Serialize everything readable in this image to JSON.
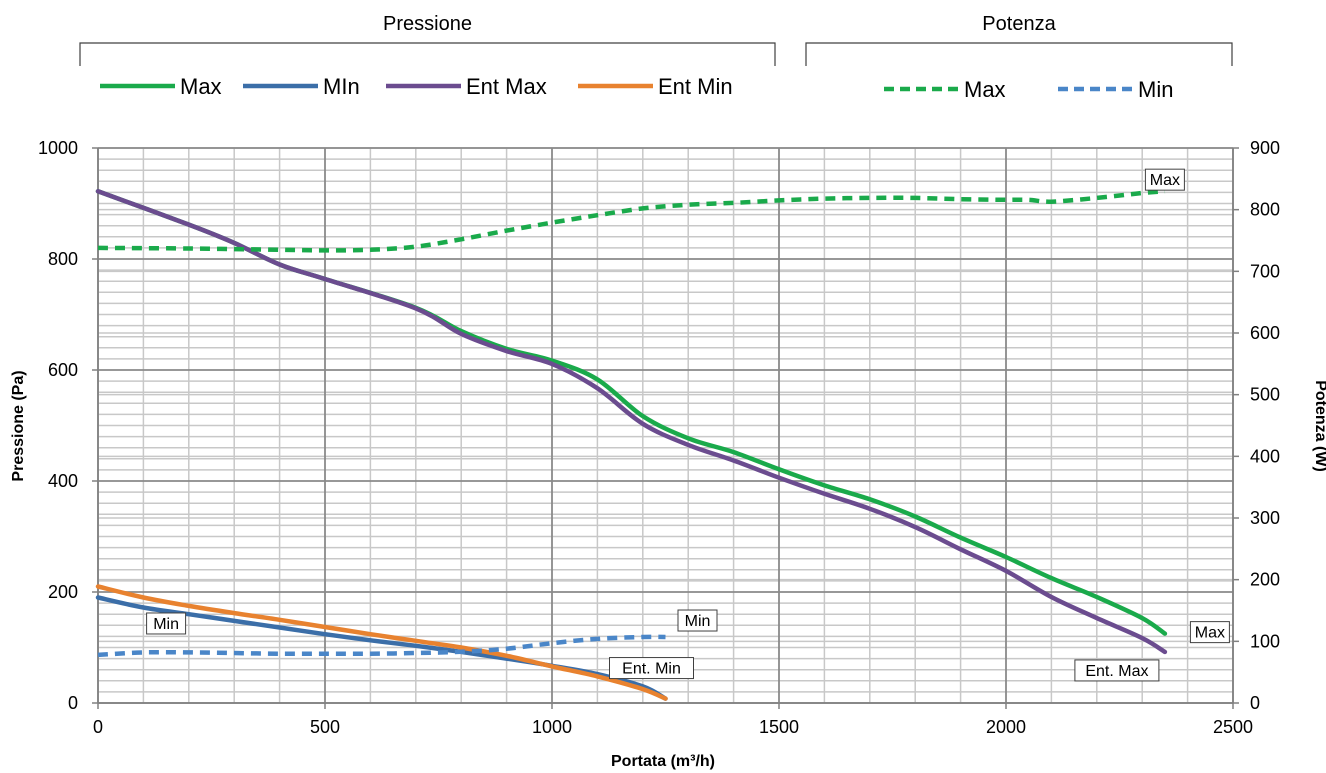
{
  "chart_data": {
    "type": "line",
    "legend": {
      "groups": [
        {
          "title": "Pressione",
          "entries": [
            {
              "label": "Max",
              "color": "#1aaa4b",
              "dashed": false
            },
            {
              "label": "MIn",
              "color": "#3b6ea8",
              "dashed": false
            },
            {
              "label": "Ent Max",
              "color": "#6b4c8f",
              "dashed": false
            },
            {
              "label": "Ent Min",
              "color": "#e8822f",
              "dashed": false
            }
          ]
        },
        {
          "title": "Potenza",
          "entries": [
            {
              "label": "Max",
              "color": "#1aaa4b",
              "dashed": true
            },
            {
              "label": "Min",
              "color": "#4a86c8",
              "dashed": true
            }
          ]
        }
      ],
      "placement": "top"
    },
    "xlabel": "Portata (m³/h)",
    "ylabel": "Pressione (Pa)",
    "y2label": "Potenza (W)",
    "xlim": [
      0,
      2500
    ],
    "ylim": [
      0,
      1000
    ],
    "y2lim": [
      0,
      900
    ],
    "x_ticks": [
      0,
      500,
      1000,
      1500,
      2000,
      2500
    ],
    "y_ticks": [
      0,
      200,
      400,
      600,
      800,
      1000
    ],
    "y2_ticks": [
      0,
      100,
      200,
      300,
      400,
      500,
      600,
      700,
      800,
      900
    ],
    "grid": true,
    "series": [
      {
        "name": "Max",
        "axis": "left",
        "color": "#1aaa4b",
        "dashed": false,
        "end_label": "Max",
        "x": [
          0,
          200,
          300,
          400,
          500,
          700,
          800,
          900,
          1000,
          1100,
          1200,
          1300,
          1400,
          1500,
          1600,
          1700,
          1800,
          1900,
          2000,
          2100,
          2200,
          2300,
          2350
        ],
        "y": [
          922,
          862,
          829,
          790,
          764,
          712,
          670,
          638,
          617,
          583,
          517,
          477,
          452,
          421,
          392,
          367,
          336,
          298,
          263,
          225,
          191,
          153,
          125
        ]
      },
      {
        "name": "MIn",
        "axis": "left",
        "color": "#3b6ea8",
        "dashed": false,
        "end_label": "Min",
        "x": [
          0,
          100,
          200,
          300,
          400,
          500,
          600,
          700,
          800,
          900,
          1000,
          1100,
          1200,
          1250
        ],
        "y": [
          190,
          172,
          160,
          148,
          136,
          124,
          113,
          103,
          92,
          80,
          67,
          52,
          30,
          8
        ]
      },
      {
        "name": "Ent Max",
        "axis": "left",
        "color": "#6b4c8f",
        "dashed": false,
        "end_label": "Ent. Max",
        "x": [
          0,
          200,
          300,
          400,
          500,
          700,
          800,
          900,
          1000,
          1100,
          1200,
          1300,
          1400,
          1500,
          1600,
          1700,
          1800,
          1900,
          2000,
          2100,
          2200,
          2300,
          2350
        ],
        "y": [
          922,
          862,
          829,
          790,
          764,
          711,
          665,
          634,
          611,
          567,
          503,
          465,
          437,
          406,
          377,
          350,
          317,
          277,
          238,
          191,
          153,
          117,
          92
        ]
      },
      {
        "name": "Ent Min",
        "axis": "left",
        "color": "#e8822f",
        "dashed": false,
        "end_label": "Ent. Min",
        "x": [
          0,
          100,
          200,
          300,
          400,
          500,
          600,
          700,
          800,
          900,
          1000,
          1100,
          1200,
          1250
        ],
        "y": [
          210,
          190,
          175,
          162,
          150,
          137,
          124,
          112,
          100,
          85,
          66,
          48,
          25,
          8
        ]
      },
      {
        "name": "Max",
        "axis": "right",
        "color": "#1aaa4b",
        "dashed": true,
        "end_label": "Max",
        "x": [
          0,
          200,
          400,
          500,
          600,
          700,
          800,
          900,
          1000,
          1100,
          1200,
          1300,
          1400,
          1500,
          1600,
          1700,
          1800,
          1900,
          2000,
          2050,
          2100,
          2200,
          2300,
          2350
        ],
        "y": [
          738,
          737,
          735,
          734,
          735,
          740,
          752,
          766,
          779,
          791,
          802,
          808,
          811,
          815,
          818,
          819,
          819,
          817,
          816,
          816,
          813,
          819,
          827,
          830
        ]
      },
      {
        "name": "Min",
        "axis": "right",
        "color": "#4a86c8",
        "dashed": true,
        "end_label": "Min",
        "x": [
          0,
          100,
          200,
          300,
          400,
          500,
          600,
          700,
          800,
          900,
          1000,
          1100,
          1200,
          1250
        ],
        "y": [
          78,
          82,
          82,
          81,
          80,
          80,
          80,
          81,
          83,
          88,
          97,
          104,
          107,
          107
        ]
      }
    ]
  }
}
